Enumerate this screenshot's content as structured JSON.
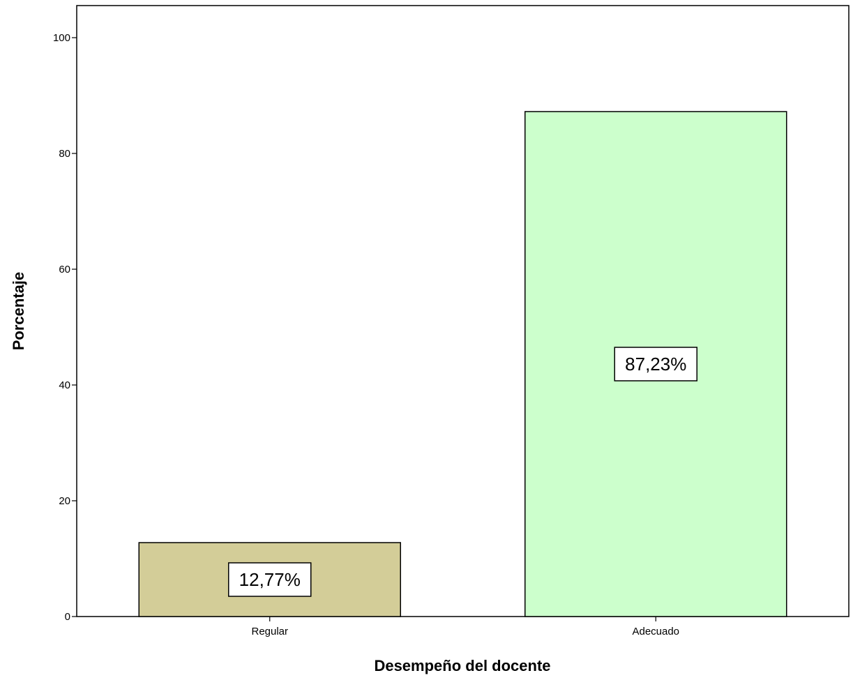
{
  "chart_data": {
    "type": "bar",
    "categories": [
      "Regular",
      "Adecuado"
    ],
    "values": [
      12.77,
      87.23
    ],
    "data_labels": [
      "12,77%",
      "87,23%"
    ],
    "colors": [
      "#d3cd98",
      "#ccffcc"
    ],
    "xlabel": "Desempeño del docente",
    "ylabel": "Porcentaje",
    "ylim": [
      0,
      100
    ],
    "yticks": [
      0,
      20,
      40,
      60,
      80,
      100
    ],
    "ytick_labels": [
      "0",
      "20",
      "40",
      "60",
      "80",
      "100"
    ],
    "grid": false,
    "legend": false
  }
}
